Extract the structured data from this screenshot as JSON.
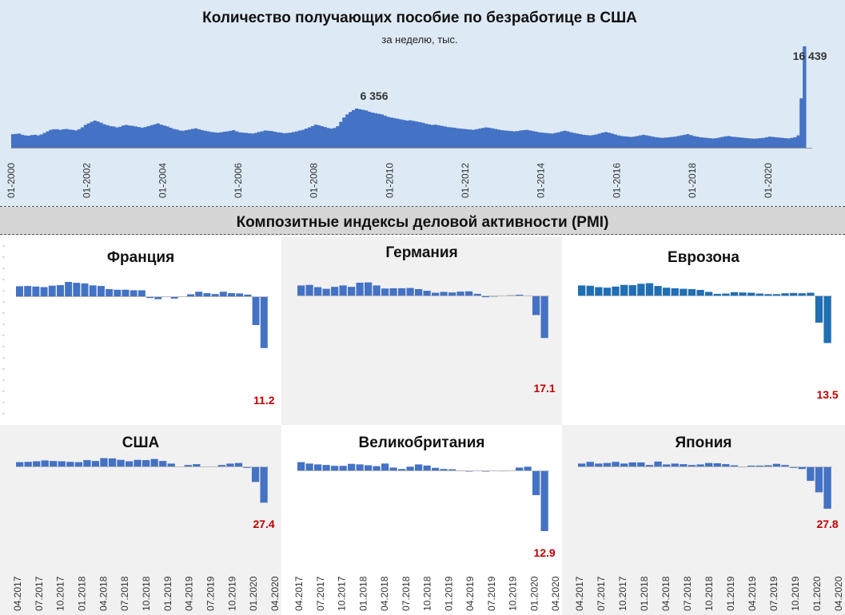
{
  "top": {
    "title": "Количество получающих пособие по безработице  в США",
    "subtitle": "за неделю, тыс.",
    "color": "#4472c4"
  },
  "pmi": {
    "title": "Композитные индексы деловой активности (PMI)",
    "x_labels": [
      "04.2017",
      "07.2017",
      "10.2017",
      "01.2018",
      "04.2018",
      "07.2018",
      "10.2018",
      "01.2019",
      "04.2019",
      "07.2019",
      "10.2019",
      "01.2020",
      "04.2020"
    ]
  },
  "panels": [
    {
      "key": "france",
      "title": "Франция",
      "color": "#4472c4",
      "last_label": "11.2"
    },
    {
      "key": "germany",
      "title": "Германия",
      "color": "#4472c4",
      "last_label": "17.1"
    },
    {
      "key": "eurozone",
      "title": "Еврозона",
      "color": "#1f6fb2",
      "last_label": "13.5"
    },
    {
      "key": "usa",
      "title": "США",
      "color": "#4472c4",
      "last_label": "27.4"
    },
    {
      "key": "uk",
      "title": "Великобритания",
      "color": "#4472c4",
      "last_label": "12.9"
    },
    {
      "key": "japan",
      "title": "Япония",
      "color": "#4472c4",
      "last_label": "27.8"
    }
  ],
  "chart_data": [
    {
      "type": "bar",
      "title": "Количество получающих пособие по безработице  в США",
      "subtitle": "за неделю, тыс.",
      "x_tick_labels": [
        "01-2000",
        "01-2002",
        "01-2004",
        "01-2006",
        "01-2008",
        "01-2010",
        "01-2012",
        "01-2014",
        "01-2016",
        "01-2018",
        "01-2020"
      ],
      "annotations": [
        {
          "label": "6 356",
          "value": 6356,
          "date": "2009-05"
        },
        {
          "label": "16 439",
          "value": 16439,
          "date": "2020-04"
        }
      ],
      "ylim": [
        0,
        16439
      ],
      "monthly_values_from_2000_01": [
        2200,
        2250,
        2300,
        2100,
        2000,
        1950,
        2050,
        2100,
        2000,
        2150,
        2400,
        2650,
        2900,
        3000,
        3000,
        2900,
        3000,
        3050,
        2950,
        2900,
        2800,
        3000,
        3300,
        3700,
        3950,
        4200,
        4400,
        4250,
        4050,
        3800,
        3650,
        3500,
        3450,
        3300,
        3400,
        3600,
        3700,
        3600,
        3550,
        3450,
        3350,
        3250,
        3350,
        3500,
        3650,
        3800,
        3950,
        3750,
        3600,
        3450,
        3250,
        3050,
        2950,
        2800,
        2750,
        2850,
        2950,
        3050,
        3150,
        3000,
        2850,
        2750,
        2650,
        2550,
        2500,
        2450,
        2500,
        2600,
        2650,
        2750,
        2850,
        2650,
        2500,
        2450,
        2400,
        2350,
        2300,
        2400,
        2550,
        2650,
        2800,
        2750,
        2700,
        2600,
        2500,
        2450,
        2350,
        2400,
        2450,
        2550,
        2650,
        2800,
        2900,
        3100,
        3300,
        3500,
        3750,
        3650,
        3500,
        3350,
        3200,
        3100,
        3200,
        3500,
        4200,
        4900,
        5400,
        5800,
        6100,
        6356,
        6250,
        6150,
        6050,
        5850,
        5700,
        5600,
        5500,
        5400,
        5200,
        5000,
        4900,
        4800,
        4700,
        4600,
        4500,
        4400,
        4450,
        4350,
        4250,
        4150,
        4050,
        3900,
        3800,
        3700,
        3750,
        3650,
        3550,
        3450,
        3350,
        3300,
        3250,
        3150,
        3100,
        3050,
        3000,
        2950,
        2900,
        3000,
        3100,
        3200,
        3300,
        3250,
        3150,
        3050,
        2950,
        2850,
        2800,
        2750,
        2700,
        2650,
        2700,
        2800,
        2850,
        2900,
        2800,
        2700,
        2600,
        2500,
        2450,
        2400,
        2350,
        2300,
        2400,
        2500,
        2650,
        2750,
        2650,
        2500,
        2400,
        2300,
        2200,
        2100,
        2050,
        2000,
        2050,
        2150,
        2300,
        2450,
        2550,
        2450,
        2300,
        2150,
        2000,
        1900,
        1850,
        1800,
        1750,
        1800,
        1900,
        2000,
        2100,
        2000,
        1900,
        1800,
        1700,
        1650,
        1600,
        1650,
        1700,
        1750,
        1800,
        1900,
        2000,
        2100,
        2200,
        2050,
        1900,
        1800,
        1700,
        1650,
        1600,
        1550,
        1500,
        1550,
        1650,
        1750,
        1850,
        1900,
        1800,
        1750,
        1700,
        1650,
        1600,
        1550,
        1500,
        1480,
        1500,
        1550,
        1600,
        1700,
        1800,
        1750,
        1700,
        1650,
        1600,
        1550,
        1500,
        1600,
        1700,
        2000,
        8000,
        16439,
        0,
        0
      ],
      "color": "#4472c4"
    },
    {
      "type": "bar",
      "title": "Франция",
      "series": [
        {
          "name": "Франция",
          "values": [
            3.5,
            3.6,
            3.4,
            3.2,
            3.7,
            3.9,
            5.0,
            4.7,
            4.5,
            3.8,
            3.6,
            2.5,
            2.3,
            2.3,
            2.1,
            2.1,
            -0.6,
            -1.0,
            -0.3,
            -0.8,
            -0.1,
            0.7,
            1.6,
            1.1,
            0.8,
            1.6,
            1.1,
            1.0,
            0.6,
            -10.0,
            -18.0
          ]
        }
      ],
      "last_value": 11.2
    },
    {
      "type": "bar",
      "title": "Германия",
      "series": [
        {
          "name": "Германия",
          "values": [
            3.6,
            3.8,
            3.0,
            2.4,
            3.1,
            3.6,
            3.1,
            4.6,
            4.7,
            3.6,
            2.5,
            2.6,
            2.6,
            2.7,
            2.3,
            1.7,
            1.0,
            1.3,
            1.1,
            1.4,
            1.5,
            0.6,
            -0.6,
            -0.4,
            -0.1,
            0.1,
            0.3,
            -0.1,
            -7.0,
            -15.2
          ]
        }
      ],
      "last_value": 17.1
    },
    {
      "type": "bar",
      "title": "Еврозона",
      "series": [
        {
          "name": "Еврозона",
          "values": [
            3.6,
            3.5,
            3.0,
            2.8,
            3.2,
            3.8,
            3.7,
            4.2,
            4.4,
            3.4,
            2.8,
            2.6,
            2.4,
            2.3,
            2.0,
            1.3,
            0.6,
            0.7,
            1.2,
            1.1,
            1.0,
            0.7,
            0.5,
            0.5,
            0.8,
            0.9,
            0.8,
            1.0,
            -9.7,
            -17.0
          ]
        }
      ],
      "last_value": 13.5
    },
    {
      "type": "bar",
      "title": "США",
      "series": [
        {
          "name": "США",
          "values": [
            1.5,
            1.6,
            1.8,
            2.1,
            1.9,
            1.8,
            1.6,
            1.5,
            2.2,
            1.9,
            2.9,
            2.8,
            2.3,
            1.8,
            2.3,
            2.2,
            2.6,
            1.9,
            1.0,
            0.0,
            0.5,
            0.8,
            -0.1,
            0.0,
            0.5,
            1.0,
            1.2,
            -0.5,
            -5.4,
            -12.6
          ]
        }
      ],
      "last_value": 27.4
    },
    {
      "type": "bar",
      "title": "Великобритания",
      "series": [
        {
          "name": "Великобритания",
          "values": [
            2.9,
            2.4,
            2.1,
            1.9,
            1.6,
            1.6,
            2.3,
            2.1,
            1.8,
            1.5,
            2.4,
            1.0,
            0.5,
            1.3,
            2.1,
            1.7,
            0.9,
            0.5,
            0.4,
            -0.2,
            -0.4,
            0.0,
            -0.4,
            0.0,
            -0.3,
            0.0,
            1.0,
            1.3,
            -8.6,
            -21.1
          ]
        }
      ],
      "last_value": 12.9
    },
    {
      "type": "bar",
      "title": "Япония",
      "series": [
        {
          "name": "Япония",
          "values": [
            1.0,
            1.6,
            1.0,
            1.2,
            1.6,
            1.0,
            1.4,
            1.4,
            0.5,
            1.7,
            0.7,
            1.0,
            0.8,
            0.5,
            0.7,
            1.2,
            1.1,
            0.8,
            0.4,
            -0.3,
            0.3,
            0.3,
            0.4,
            0.9,
            0.5,
            -0.5,
            -0.9,
            -5.0,
            -9.0,
            -14.7
          ]
        }
      ],
      "last_value": 27.8
    }
  ]
}
